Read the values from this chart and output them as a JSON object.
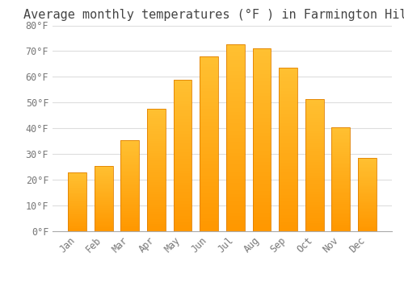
{
  "title": "Average monthly temperatures (°F ) in Farmington Hills",
  "months": [
    "Jan",
    "Feb",
    "Mar",
    "Apr",
    "May",
    "Jun",
    "Jul",
    "Aug",
    "Sep",
    "Oct",
    "Nov",
    "Dec"
  ],
  "values": [
    23,
    25.5,
    35.5,
    47.5,
    59,
    68,
    72.5,
    71,
    63.5,
    51.5,
    40.5,
    28.5
  ],
  "bar_color_top": "#FFC107",
  "bar_color_bottom": "#FF9800",
  "bar_edge_color": "#E08000",
  "background_color": "#FFFFFF",
  "grid_color": "#DDDDDD",
  "tick_label_color": "#777777",
  "title_color": "#444444",
  "ylim": [
    0,
    80
  ],
  "ytick_step": 10,
  "title_fontsize": 11,
  "tick_fontsize": 8.5,
  "bar_width": 0.7
}
